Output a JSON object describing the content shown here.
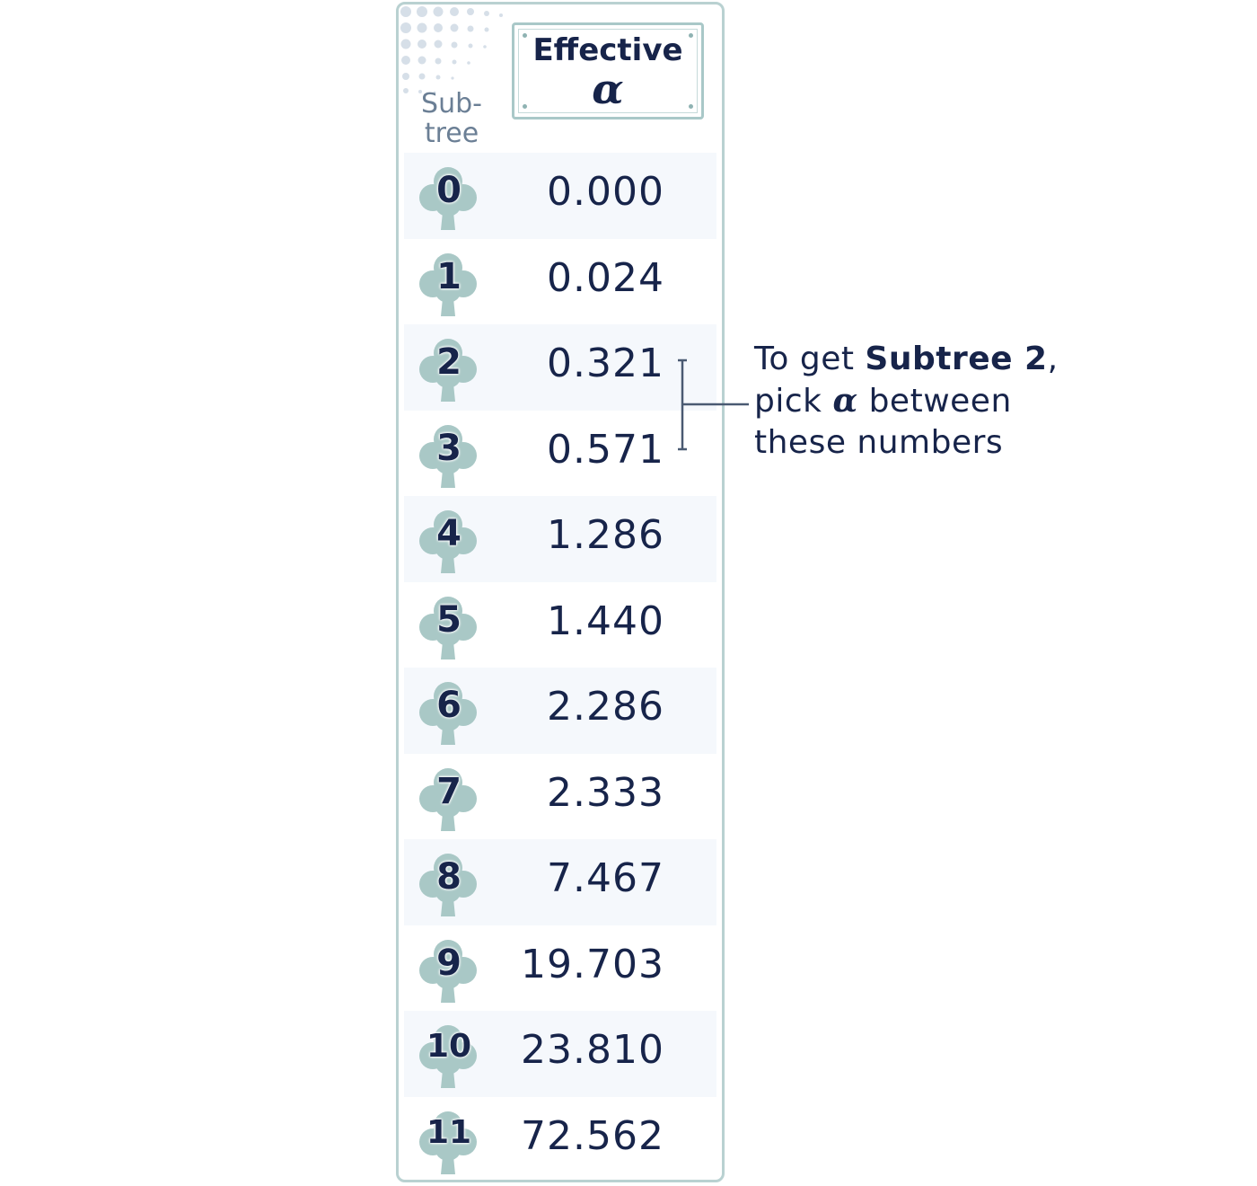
{
  "table": {
    "column_label_line1": "Sub-",
    "column_label_line2": "tree",
    "header_title": "Effective",
    "header_symbol": "α",
    "rows": [
      {
        "subtree": "0",
        "alpha": "0.000"
      },
      {
        "subtree": "1",
        "alpha": "0.024"
      },
      {
        "subtree": "2",
        "alpha": "0.321"
      },
      {
        "subtree": "3",
        "alpha": "0.571"
      },
      {
        "subtree": "4",
        "alpha": "1.286"
      },
      {
        "subtree": "5",
        "alpha": "1.440"
      },
      {
        "subtree": "6",
        "alpha": "2.286"
      },
      {
        "subtree": "7",
        "alpha": "2.333"
      },
      {
        "subtree": "8",
        "alpha": "7.467"
      },
      {
        "subtree": "9",
        "alpha": "19.703"
      },
      {
        "subtree": "10",
        "alpha": "23.810"
      },
      {
        "subtree": "11",
        "alpha": "72.562"
      }
    ]
  },
  "annotation": {
    "line1_prefix": "To get ",
    "line1_bold": "Subtree 2",
    "line1_suffix": ",",
    "line2_prefix": "pick ",
    "line2_symbol": "α",
    "line2_suffix": " between",
    "line3": "these numbers"
  },
  "colors": {
    "text": "#17244a",
    "tree_icon": "#a9c8c6",
    "panel_border": "#b9d1d1",
    "row_shade": "#f5f8fc"
  },
  "icons": {
    "row_icon": "tree-icon"
  }
}
